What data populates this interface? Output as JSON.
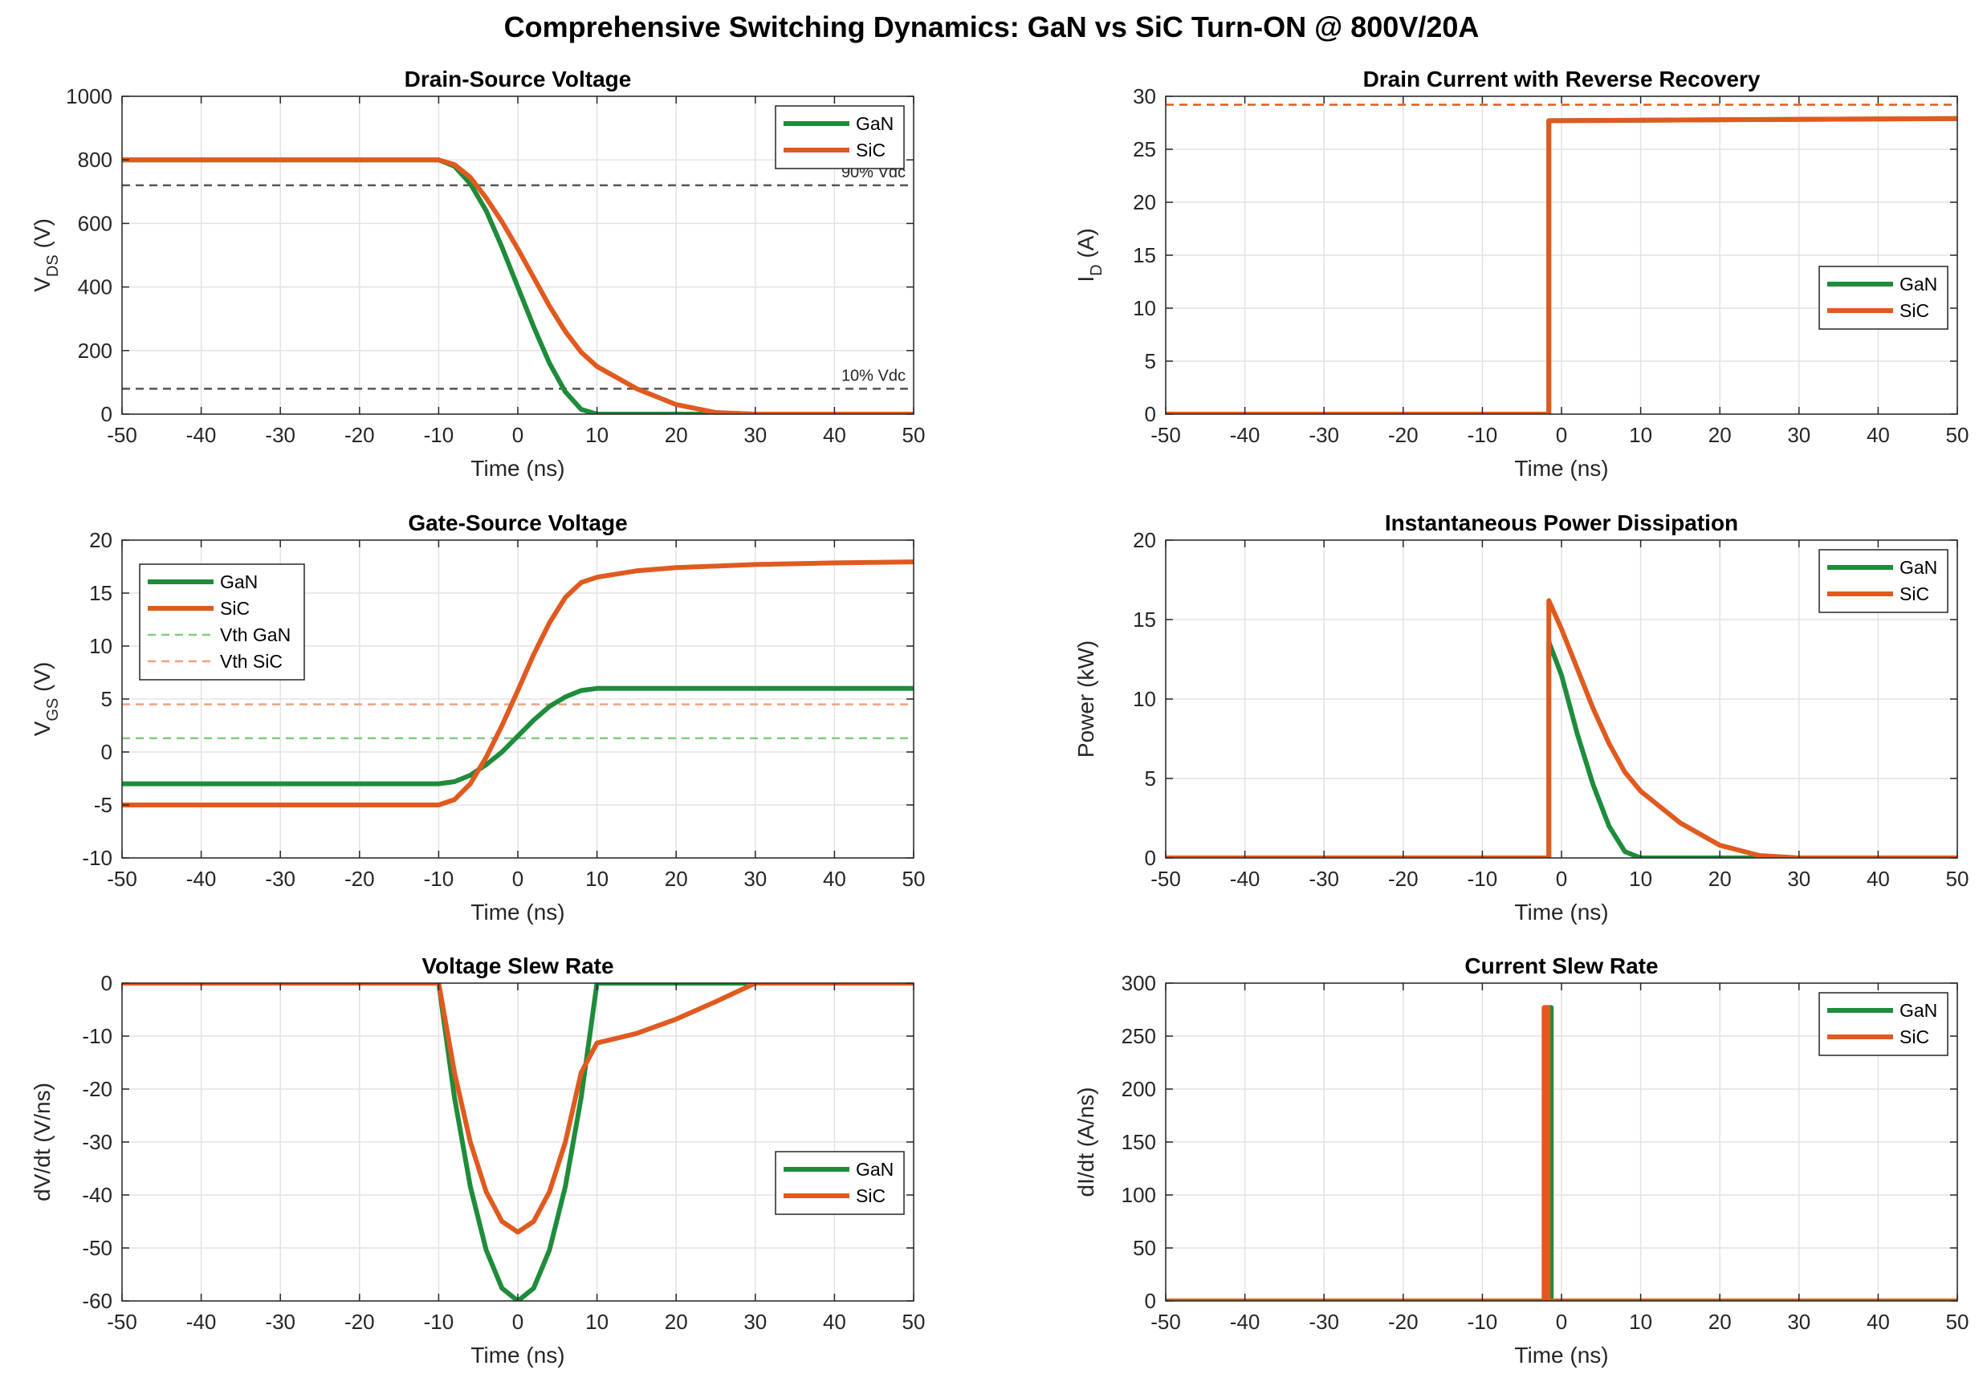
{
  "figure": {
    "title": "Comprehensive Switching Dynamics: GaN vs SiC Turn-ON @ 800V/20A"
  },
  "colors": {
    "gan": "#1e8c3a",
    "sic": "#e05a1f",
    "vth_gan": "#7fcc7f",
    "vth_sic": "#f0a080",
    "ref": "#555555"
  },
  "chart_data": [
    {
      "id": "vds",
      "type": "line",
      "title": "Drain-Source Voltage",
      "xlabel": "Time (ns)",
      "ylabel_main": "V",
      "ylabel_sub": "DS",
      "ylabel_tail": " (V)",
      "xlim": [
        -50,
        50
      ],
      "ylim": [
        0,
        1000
      ],
      "xticks": [
        -50,
        -40,
        -30,
        -20,
        -10,
        0,
        10,
        20,
        30,
        40,
        50
      ],
      "yticks": [
        0,
        200,
        400,
        600,
        800,
        1000
      ],
      "grid": true,
      "legend": "top-right",
      "series": [
        {
          "name": "GaN",
          "color": "#1e8c3a",
          "x": [
            -50,
            -10,
            -8,
            -6,
            -4,
            -2,
            0,
            2,
            4,
            6,
            8,
            10,
            50
          ],
          "y": [
            800,
            800,
            780,
            725,
            640,
            525,
            400,
            275,
            160,
            70,
            15,
            0,
            0
          ]
        },
        {
          "name": "SiC",
          "color": "#e05a1f",
          "x": [
            -50,
            -10,
            -8,
            -6,
            -4,
            -2,
            0,
            2,
            4,
            6,
            8,
            10,
            15,
            20,
            25,
            30,
            50
          ],
          "y": [
            800,
            800,
            785,
            745,
            680,
            605,
            520,
            430,
            340,
            260,
            195,
            150,
            80,
            30,
            5,
            0,
            0
          ]
        }
      ],
      "hlines": [
        {
          "y": 720,
          "label": "90% Vdc",
          "color": "#555555"
        },
        {
          "y": 80,
          "label": "10% Vdc",
          "color": "#555555"
        }
      ]
    },
    {
      "id": "id",
      "type": "line",
      "title": "Drain Current with Reverse Recovery",
      "xlabel": "Time (ns)",
      "ylabel_main": "I",
      "ylabel_sub": "D",
      "ylabel_tail": " (A)",
      "xlim": [
        -50,
        50
      ],
      "ylim": [
        0,
        30
      ],
      "xticks": [
        -50,
        -40,
        -30,
        -20,
        -10,
        0,
        10,
        20,
        30,
        40,
        50
      ],
      "yticks": [
        0,
        5,
        10,
        15,
        20,
        25,
        30
      ],
      "grid": true,
      "legend": "center-right",
      "series": [
        {
          "name": "GaN",
          "color": "#1e8c3a",
          "x": [
            -50,
            -1.6,
            -1.6,
            50
          ],
          "y": [
            0,
            0,
            27.7,
            27.9
          ]
        },
        {
          "name": "SiC",
          "color": "#e05a1f",
          "x": [
            -50,
            -1.6,
            -1.6,
            50
          ],
          "y": [
            0,
            0,
            27.7,
            27.9
          ]
        }
      ],
      "hlines": [
        {
          "y": 29.2,
          "label": "",
          "color": "#e05a1f"
        }
      ]
    },
    {
      "id": "vgs",
      "type": "line",
      "title": "Gate-Source Voltage",
      "xlabel": "Time (ns)",
      "ylabel_main": "V",
      "ylabel_sub": "GS",
      "ylabel_tail": " (V)",
      "xlim": [
        -50,
        50
      ],
      "ylim": [
        -10,
        20
      ],
      "xticks": [
        -50,
        -40,
        -30,
        -20,
        -10,
        0,
        10,
        20,
        30,
        40,
        50
      ],
      "yticks": [
        -10,
        -5,
        0,
        5,
        10,
        15,
        20
      ],
      "grid": true,
      "legend": "top-left",
      "series": [
        {
          "name": "GaN",
          "color": "#1e8c3a",
          "x": [
            -50,
            -10,
            -8,
            -6,
            -4,
            -2,
            0,
            2,
            4,
            6,
            8,
            10,
            50
          ],
          "y": [
            -3,
            -3,
            -2.8,
            -2.2,
            -1.2,
            0,
            1.5,
            3,
            4.3,
            5.2,
            5.8,
            6,
            6
          ]
        },
        {
          "name": "SiC",
          "color": "#e05a1f",
          "x": [
            -50,
            -10,
            -8,
            -6,
            -4,
            -2,
            0,
            2,
            4,
            6,
            8,
            10,
            15,
            20,
            30,
            40,
            50
          ],
          "y": [
            -5,
            -5,
            -4.5,
            -3,
            -0.5,
            2.5,
            5.8,
            9.2,
            12.2,
            14.6,
            16,
            16.5,
            17.1,
            17.4,
            17.7,
            17.85,
            17.95
          ]
        }
      ],
      "hlines": [
        {
          "y": 1.3,
          "label": "Vth GaN",
          "color": "#7fcc7f"
        },
        {
          "y": 4.5,
          "label": "Vth SiC",
          "color": "#f0a080"
        }
      ]
    },
    {
      "id": "power",
      "type": "line",
      "title": "Instantaneous Power Dissipation",
      "xlabel": "Time (ns)",
      "ylabel_main": "Power (kW)",
      "ylabel_sub": "",
      "ylabel_tail": "",
      "xlim": [
        -50,
        50
      ],
      "ylim": [
        0,
        20
      ],
      "xticks": [
        -50,
        -40,
        -30,
        -20,
        -10,
        0,
        10,
        20,
        30,
        40,
        50
      ],
      "yticks": [
        0,
        5,
        10,
        15,
        20
      ],
      "grid": true,
      "legend": "top-right",
      "series": [
        {
          "name": "GaN",
          "color": "#1e8c3a",
          "x": [
            -50,
            -1.6,
            -1.6,
            0,
            2,
            4,
            6,
            8,
            10,
            50
          ],
          "y": [
            0,
            0,
            13.6,
            11.5,
            7.8,
            4.6,
            2,
            0.4,
            0,
            0
          ]
        },
        {
          "name": "SiC",
          "color": "#e05a1f",
          "x": [
            -50,
            -1.6,
            -1.6,
            0,
            2,
            4,
            6,
            8,
            10,
            15,
            20,
            25,
            30,
            50
          ],
          "y": [
            0,
            0,
            16.2,
            14.4,
            11.9,
            9.4,
            7.2,
            5.4,
            4.2,
            2.2,
            0.8,
            0.15,
            0,
            0
          ]
        }
      ],
      "hlines": []
    },
    {
      "id": "dvdt",
      "type": "line",
      "title": "Voltage Slew Rate",
      "xlabel": "Time (ns)",
      "ylabel_main": "dV/dt (V/ns)",
      "ylabel_sub": "",
      "ylabel_tail": "",
      "xlim": [
        -50,
        50
      ],
      "ylim": [
        -60,
        0
      ],
      "xticks": [
        -50,
        -40,
        -30,
        -20,
        -10,
        0,
        10,
        20,
        30,
        40,
        50
      ],
      "yticks": [
        -60,
        -50,
        -40,
        -30,
        -20,
        -10,
        0
      ],
      "grid": true,
      "legend": "bottom-right",
      "series": [
        {
          "name": "GaN",
          "color": "#1e8c3a",
          "x": [
            -50,
            -10,
            -8,
            -6,
            -4,
            -2,
            0,
            2,
            4,
            6,
            8,
            10,
            50
          ],
          "y": [
            0,
            0,
            -21.6,
            -38.4,
            -50.4,
            -57.6,
            -60,
            -57.6,
            -50.4,
            -38.4,
            -21.6,
            0,
            0
          ]
        },
        {
          "name": "SiC",
          "color": "#e05a1f",
          "x": [
            -50,
            -10,
            -8,
            -6,
            -4,
            -2,
            0,
            2,
            4,
            6,
            8,
            10,
            15,
            20,
            25,
            30,
            50
          ],
          "y": [
            0,
            0,
            -16.9,
            -30,
            -39.4,
            -45,
            -47,
            -45,
            -39.4,
            -30,
            -16.9,
            -11.3,
            -9.5,
            -6.8,
            -3.5,
            0,
            0
          ]
        }
      ],
      "hlines": []
    },
    {
      "id": "didt",
      "type": "line",
      "title": "Current Slew Rate",
      "xlabel": "Time (ns)",
      "ylabel_main": "dI/dt (A/ns)",
      "ylabel_sub": "",
      "ylabel_tail": "",
      "xlim": [
        -50,
        50
      ],
      "ylim": [
        0,
        300
      ],
      "xticks": [
        -50,
        -40,
        -30,
        -20,
        -10,
        0,
        10,
        20,
        30,
        40,
        50
      ],
      "yticks": [
        0,
        50,
        100,
        150,
        200,
        250,
        300
      ],
      "grid": true,
      "legend": "top-right",
      "series": [
        {
          "name": "GaN",
          "color": "#1e8c3a",
          "x": [
            -50,
            -1.8,
            -1.8,
            -1.3,
            -1.3,
            50
          ],
          "y": [
            0,
            0,
            277,
            277,
            0,
            0
          ]
        },
        {
          "name": "SiC",
          "color": "#e05a1f",
          "x": [
            -50,
            -2.2,
            -2.2,
            -1.7,
            -1.7,
            50
          ],
          "y": [
            0,
            0,
            277,
            277,
            0,
            0
          ]
        }
      ],
      "hlines": []
    }
  ]
}
